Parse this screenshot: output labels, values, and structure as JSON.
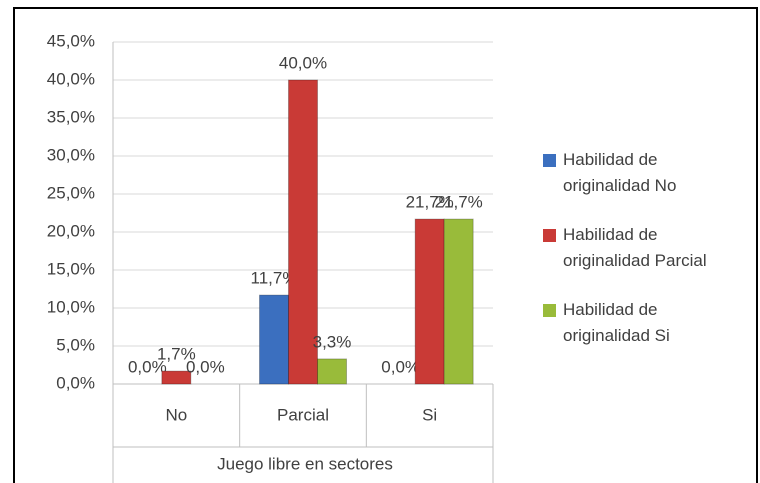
{
  "chart_data": {
    "type": "bar",
    "xlabel": "Juego libre en sectores",
    "categories": [
      "No",
      "Parcial",
      "Si"
    ],
    "series": [
      {
        "name": "Habilidad de originalidad No",
        "color": "#3b6fbf",
        "values": [
          0,
          11.7,
          0
        ],
        "value_labels": [
          "0,0%",
          "11,7%",
          "0,0%"
        ]
      },
      {
        "name": "Habilidad de originalidad Parcial",
        "color": "#c93a36",
        "values": [
          1.7,
          40,
          21.7
        ],
        "value_labels": [
          "1,7%",
          "40,0%",
          "21,7%"
        ]
      },
      {
        "name": "Habilidad de originalidad Si",
        "color": "#99bb3a",
        "values": [
          0,
          3.3,
          21.7
        ],
        "value_labels": [
          "0,0%",
          "3,3%",
          "21,7%"
        ]
      }
    ],
    "ylim": [
      0,
      45
    ],
    "yticks": [
      {
        "value": 0,
        "label": "0,0%"
      },
      {
        "value": 5,
        "label": "5,0%"
      },
      {
        "value": 10,
        "label": "10,0%"
      },
      {
        "value": 15,
        "label": "15,0%"
      },
      {
        "value": 20,
        "label": "20,0%"
      },
      {
        "value": 25,
        "label": "25,0%"
      },
      {
        "value": 30,
        "label": "30,0%"
      },
      {
        "value": 35,
        "label": "35,0%"
      },
      {
        "value": 40,
        "label": "40,0%"
      },
      {
        "value": 45,
        "label": "45,0%"
      }
    ],
    "grid": true,
    "legend": "right"
  }
}
